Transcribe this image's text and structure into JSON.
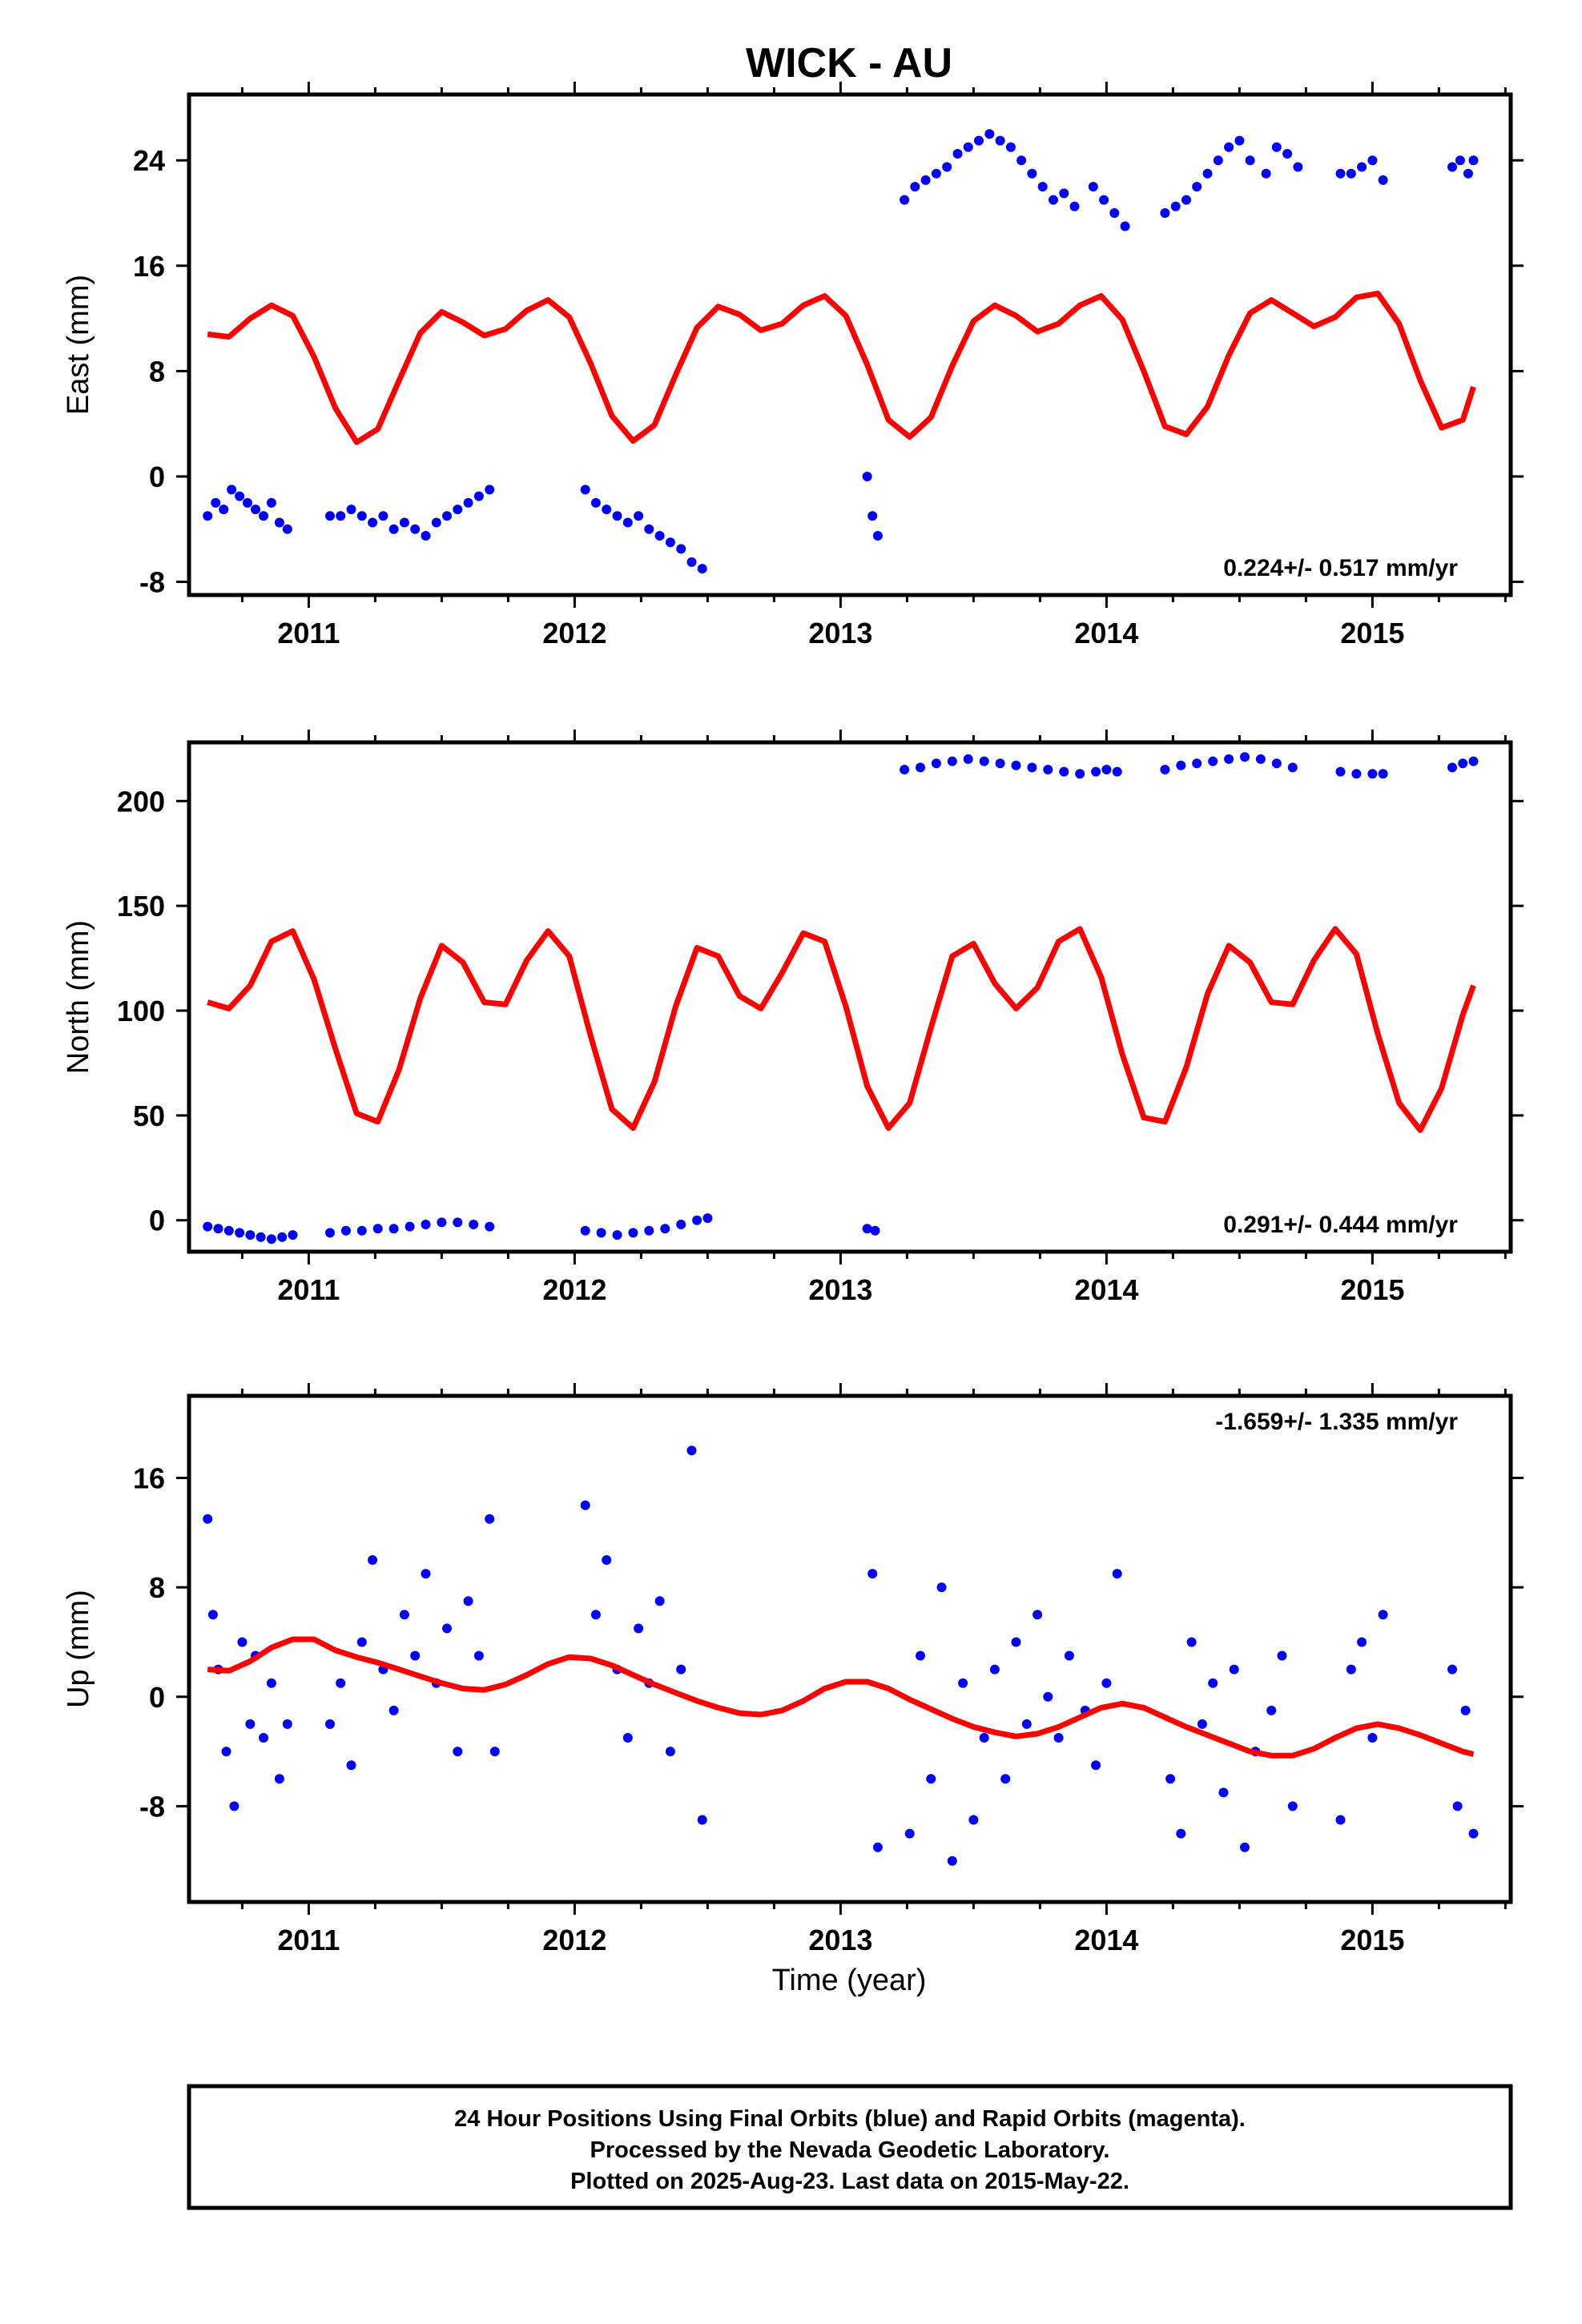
{
  "title": "WICK - AU",
  "colors": {
    "final_orbits": "#0000ff",
    "model": "#ff0000",
    "frame": "#000000"
  },
  "footer": {
    "line1": "24 Hour Positions Using Final Orbits (blue) and Rapid Orbits (magenta).",
    "line2": "Processed by the Nevada Geodetic Laboratory.",
    "line3": "Plotted on 2025-Aug-23. Last data on 2015-May-22."
  },
  "xlabel": "Time (year)",
  "chart_data": [
    {
      "type": "scatter",
      "component": "east",
      "ylabel": "East (mm)",
      "rate": "0.224+/- 0.517 mm/yr",
      "xlim": [
        2010.55,
        2015.52
      ],
      "ylim": [
        -9,
        29
      ],
      "x_ticks": [
        2011,
        2012,
        2013,
        2014,
        2015
      ],
      "y_ticks": [
        -8,
        0,
        8,
        16,
        24
      ],
      "series": [
        {
          "kind": "points",
          "x": [
            2010.62,
            2010.65,
            2010.68,
            2010.71,
            2010.74,
            2010.77,
            2010.8,
            2010.83,
            2010.86,
            2010.89,
            2010.92,
            2011.08,
            2011.12,
            2011.16,
            2011.2,
            2011.24,
            2011.28,
            2011.32,
            2011.36,
            2011.4,
            2011.44,
            2011.48,
            2011.52,
            2011.56,
            2011.6,
            2011.64,
            2011.68,
            2012.04,
            2012.08,
            2012.12,
            2012.16,
            2012.2,
            2012.24,
            2012.28,
            2012.32,
            2012.36,
            2012.4,
            2012.44,
            2012.48,
            2013.1,
            2013.12,
            2013.14,
            2013.24,
            2013.28,
            2013.32,
            2013.36,
            2013.4,
            2013.44,
            2013.48,
            2013.52,
            2013.56,
            2013.6,
            2013.64,
            2013.68,
            2013.72,
            2013.76,
            2013.8,
            2013.84,
            2013.88,
            2013.95,
            2013.99,
            2014.03,
            2014.07,
            2014.22,
            2014.26,
            2014.3,
            2014.34,
            2014.38,
            2014.42,
            2014.46,
            2014.5,
            2014.54,
            2014.6,
            2014.64,
            2014.68,
            2014.72,
            2014.88,
            2014.92,
            2014.96,
            2015.0,
            2015.04,
            2015.3,
            2015.33,
            2015.36,
            2015.38
          ],
          "y": [
            -3,
            -2,
            -2.5,
            -1,
            -1.5,
            -2,
            -2.5,
            -3,
            -2,
            -3.5,
            -4,
            -3,
            -3,
            -2.5,
            -3,
            -3.5,
            -3,
            -4,
            -3.5,
            -4,
            -4.5,
            -3.5,
            -3,
            -2.5,
            -2,
            -1.5,
            -1,
            -1,
            -2,
            -2.5,
            -3,
            -3.5,
            -3,
            -4,
            -4.5,
            -5,
            -5.5,
            -6.5,
            -7,
            0,
            -3,
            -4.5,
            21,
            22,
            22.5,
            23,
            23.5,
            24.5,
            25,
            25.5,
            26,
            25.5,
            25,
            24,
            23,
            22,
            21,
            21.5,
            20.5,
            22,
            21,
            20,
            19,
            20,
            20.5,
            21,
            22,
            23,
            24,
            25,
            25.5,
            24,
            23,
            25,
            24.5,
            23.5,
            23,
            23,
            23.5,
            24,
            22.5,
            23.5,
            24,
            23,
            24
          ]
        },
        {
          "kind": "model",
          "x": [
            2010.62,
            2010.7,
            2010.78,
            2010.86,
            2010.94,
            2011.02,
            2011.1,
            2011.18,
            2011.26,
            2011.34,
            2011.42,
            2011.5,
            2011.58,
            2011.66,
            2011.74,
            2011.82,
            2011.9,
            2011.98,
            2012.06,
            2012.14,
            2012.22,
            2012.3,
            2012.38,
            2012.46,
            2012.54,
            2012.62,
            2012.7,
            2012.78,
            2012.86,
            2012.94,
            2013.02,
            2013.1,
            2013.18,
            2013.26,
            2013.34,
            2013.42,
            2013.5,
            2013.58,
            2013.66,
            2013.74,
            2013.82,
            2013.9,
            2013.98,
            2014.06,
            2014.14,
            2014.22,
            2014.3,
            2014.38,
            2014.46,
            2014.54,
            2014.62,
            2014.7,
            2014.78,
            2014.86,
            2014.94,
            2015.02,
            2015.1,
            2015.18,
            2015.26,
            2015.34,
            2015.38
          ],
          "y": [
            10.8,
            10.6,
            12.0,
            13.0,
            12.2,
            9.1,
            5.2,
            2.6,
            3.6,
            7.3,
            10.9,
            12.5,
            11.7,
            10.7,
            11.2,
            12.6,
            13.4,
            12.1,
            8.6,
            4.6,
            2.7,
            3.9,
            7.7,
            11.3,
            12.9,
            12.3,
            11.1,
            11.6,
            13.0,
            13.7,
            12.2,
            8.5,
            4.3,
            3.0,
            4.5,
            8.4,
            11.8,
            13.0,
            12.2,
            11.0,
            11.6,
            13.0,
            13.7,
            11.9,
            8.0,
            3.8,
            3.2,
            5.3,
            9.2,
            12.4,
            13.4,
            12.4,
            11.4,
            12.1,
            13.6,
            13.9,
            11.6,
            7.3,
            3.7,
            4.3,
            6.8
          ]
        }
      ]
    },
    {
      "type": "scatter",
      "component": "north",
      "ylabel": "North (mm)",
      "rate": "0.291+/- 0.444 mm/yr",
      "xlim": [
        2010.55,
        2015.52
      ],
      "ylim": [
        -15,
        228
      ],
      "x_ticks": [
        2011,
        2012,
        2013,
        2014,
        2015
      ],
      "y_ticks": [
        0,
        50,
        100,
        150,
        200
      ],
      "series": [
        {
          "kind": "points",
          "x": [
            2010.62,
            2010.66,
            2010.7,
            2010.74,
            2010.78,
            2010.82,
            2010.86,
            2010.9,
            2010.94,
            2011.08,
            2011.14,
            2011.2,
            2011.26,
            2011.32,
            2011.38,
            2011.44,
            2011.5,
            2011.56,
            2011.62,
            2011.68,
            2012.04,
            2012.1,
            2012.16,
            2012.22,
            2012.28,
            2012.34,
            2012.4,
            2012.46,
            2012.5,
            2013.1,
            2013.13,
            2013.24,
            2013.3,
            2013.36,
            2013.42,
            2013.48,
            2013.54,
            2013.6,
            2013.66,
            2013.72,
            2013.78,
            2013.84,
            2013.9,
            2013.96,
            2014.0,
            2014.04,
            2014.22,
            2014.28,
            2014.34,
            2014.4,
            2014.46,
            2014.52,
            2014.58,
            2014.64,
            2014.7,
            2014.88,
            2014.94,
            2015.0,
            2015.04,
            2015.3,
            2015.34,
            2015.38
          ],
          "y": [
            -3,
            -4,
            -5,
            -6,
            -7,
            -8,
            -9,
            -8,
            -7,
            -6,
            -5,
            -5,
            -4,
            -4,
            -3,
            -2,
            -1,
            -1,
            -2,
            -3,
            -5,
            -6,
            -7,
            -6,
            -5,
            -4,
            -2,
            0,
            1,
            -4,
            -5,
            215,
            216,
            218,
            219,
            220,
            219,
            218,
            217,
            216,
            215,
            214,
            213,
            214,
            215,
            214,
            215,
            217,
            218,
            219,
            220,
            221,
            220,
            218,
            216,
            214,
            213,
            213,
            213,
            216,
            218,
            219
          ]
        },
        {
          "kind": "model",
          "x": [
            2010.62,
            2010.7,
            2010.78,
            2010.86,
            2010.94,
            2011.02,
            2011.1,
            2011.18,
            2011.26,
            2011.34,
            2011.42,
            2011.5,
            2011.58,
            2011.66,
            2011.74,
            2011.82,
            2011.9,
            2011.98,
            2012.06,
            2012.14,
            2012.22,
            2012.3,
            2012.38,
            2012.46,
            2012.54,
            2012.62,
            2012.7,
            2012.78,
            2012.86,
            2012.94,
            2013.02,
            2013.1,
            2013.18,
            2013.26,
            2013.34,
            2013.42,
            2013.5,
            2013.58,
            2013.66,
            2013.74,
            2013.82,
            2013.9,
            2013.98,
            2014.06,
            2014.14,
            2014.22,
            2014.3,
            2014.38,
            2014.46,
            2014.54,
            2014.62,
            2014.7,
            2014.78,
            2014.86,
            2014.94,
            2015.02,
            2015.1,
            2015.18,
            2015.26,
            2015.34,
            2015.38
          ],
          "y": [
            104,
            101,
            112,
            133,
            138,
            115,
            82,
            51,
            47,
            72,
            106,
            131,
            123,
            104,
            103,
            124,
            138,
            126,
            88,
            53,
            44,
            66,
            102,
            130,
            126,
            107,
            101,
            118,
            137,
            133,
            102,
            64,
            44,
            56,
            92,
            126,
            132,
            113,
            101,
            111,
            133,
            139,
            116,
            79,
            49,
            47,
            73,
            108,
            131,
            123,
            104,
            103,
            124,
            139,
            127,
            89,
            56,
            43,
            63,
            98,
            112
          ]
        }
      ]
    },
    {
      "type": "scatter",
      "component": "up",
      "ylabel": "Up (mm)",
      "rate": "-1.659+/- 1.335 mm/yr",
      "xlim": [
        2010.55,
        2015.52
      ],
      "ylim": [
        -15,
        22
      ],
      "x_ticks": [
        2011,
        2012,
        2013,
        2014,
        2015
      ],
      "y_ticks": [
        -8,
        0,
        8,
        16
      ],
      "series": [
        {
          "kind": "points",
          "x": [
            2010.62,
            2010.64,
            2010.66,
            2010.69,
            2010.72,
            2010.75,
            2010.78,
            2010.8,
            2010.83,
            2010.86,
            2010.89,
            2010.92,
            2011.08,
            2011.12,
            2011.16,
            2011.2,
            2011.24,
            2011.28,
            2011.32,
            2011.36,
            2011.4,
            2011.44,
            2011.48,
            2011.52,
            2011.56,
            2011.6,
            2011.64,
            2011.68,
            2011.7,
            2012.04,
            2012.08,
            2012.12,
            2012.16,
            2012.2,
            2012.24,
            2012.28,
            2012.32,
            2012.36,
            2012.4,
            2012.44,
            2012.48,
            2013.12,
            2013.14,
            2013.26,
            2013.3,
            2013.34,
            2013.38,
            2013.42,
            2013.46,
            2013.5,
            2013.54,
            2013.58,
            2013.62,
            2013.66,
            2013.7,
            2013.74,
            2013.78,
            2013.82,
            2013.86,
            2013.92,
            2013.96,
            2014.0,
            2014.04,
            2014.24,
            2014.28,
            2014.32,
            2014.36,
            2014.4,
            2014.44,
            2014.48,
            2014.52,
            2014.56,
            2014.62,
            2014.66,
            2014.7,
            2014.88,
            2014.92,
            2014.96,
            2015.0,
            2015.04,
            2015.3,
            2015.32,
            2015.35,
            2015.38
          ],
          "y": [
            13,
            6,
            2,
            -4,
            -8,
            4,
            -2,
            3,
            -3,
            1,
            -6,
            -2,
            -2,
            1,
            -5,
            4,
            10,
            2,
            -1,
            6,
            3,
            9,
            1,
            5,
            -4,
            7,
            3,
            13,
            -4,
            14,
            6,
            10,
            2,
            -3,
            5,
            1,
            7,
            -4,
            2,
            18,
            -9,
            9,
            -11,
            -10,
            3,
            -6,
            8,
            -12,
            1,
            -9,
            -3,
            2,
            -6,
            4,
            -2,
            6,
            0,
            -3,
            3,
            -1,
            -5,
            1,
            9,
            -6,
            -10,
            4,
            -2,
            1,
            -7,
            2,
            -11,
            -4,
            -1,
            3,
            -8,
            -9,
            2,
            4,
            -3,
            6,
            2,
            -8,
            -1,
            -10
          ]
        },
        {
          "kind": "model",
          "x": [
            2010.62,
            2010.7,
            2010.78,
            2010.86,
            2010.94,
            2011.02,
            2011.1,
            2011.18,
            2011.26,
            2011.34,
            2011.42,
            2011.5,
            2011.58,
            2011.66,
            2011.74,
            2011.82,
            2011.9,
            2011.98,
            2012.06,
            2012.14,
            2012.22,
            2012.3,
            2012.38,
            2012.46,
            2012.54,
            2012.62,
            2012.7,
            2012.78,
            2012.86,
            2012.94,
            2013.02,
            2013.1,
            2013.18,
            2013.26,
            2013.34,
            2013.42,
            2013.5,
            2013.58,
            2013.66,
            2013.74,
            2013.82,
            2013.9,
            2013.98,
            2014.06,
            2014.14,
            2014.22,
            2014.3,
            2014.38,
            2014.46,
            2014.54,
            2014.62,
            2014.7,
            2014.78,
            2014.86,
            2014.94,
            2015.02,
            2015.1,
            2015.18,
            2015.26,
            2015.34,
            2015.38
          ],
          "y": [
            2.0,
            1.9,
            2.6,
            3.6,
            4.2,
            4.2,
            3.4,
            2.9,
            2.5,
            2.0,
            1.5,
            1.0,
            0.6,
            0.5,
            0.9,
            1.6,
            2.4,
            2.9,
            2.8,
            2.3,
            1.6,
            0.9,
            0.3,
            -0.3,
            -0.8,
            -1.2,
            -1.3,
            -1.0,
            -0.3,
            0.6,
            1.1,
            1.1,
            0.6,
            -0.2,
            -0.9,
            -1.6,
            -2.2,
            -2.6,
            -2.9,
            -2.7,
            -2.2,
            -1.5,
            -0.8,
            -0.5,
            -0.8,
            -1.5,
            -2.2,
            -2.8,
            -3.4,
            -4.0,
            -4.3,
            -4.3,
            -3.8,
            -3.0,
            -2.3,
            -2.0,
            -2.3,
            -2.8,
            -3.4,
            -4.0,
            -4.2
          ]
        }
      ]
    }
  ]
}
